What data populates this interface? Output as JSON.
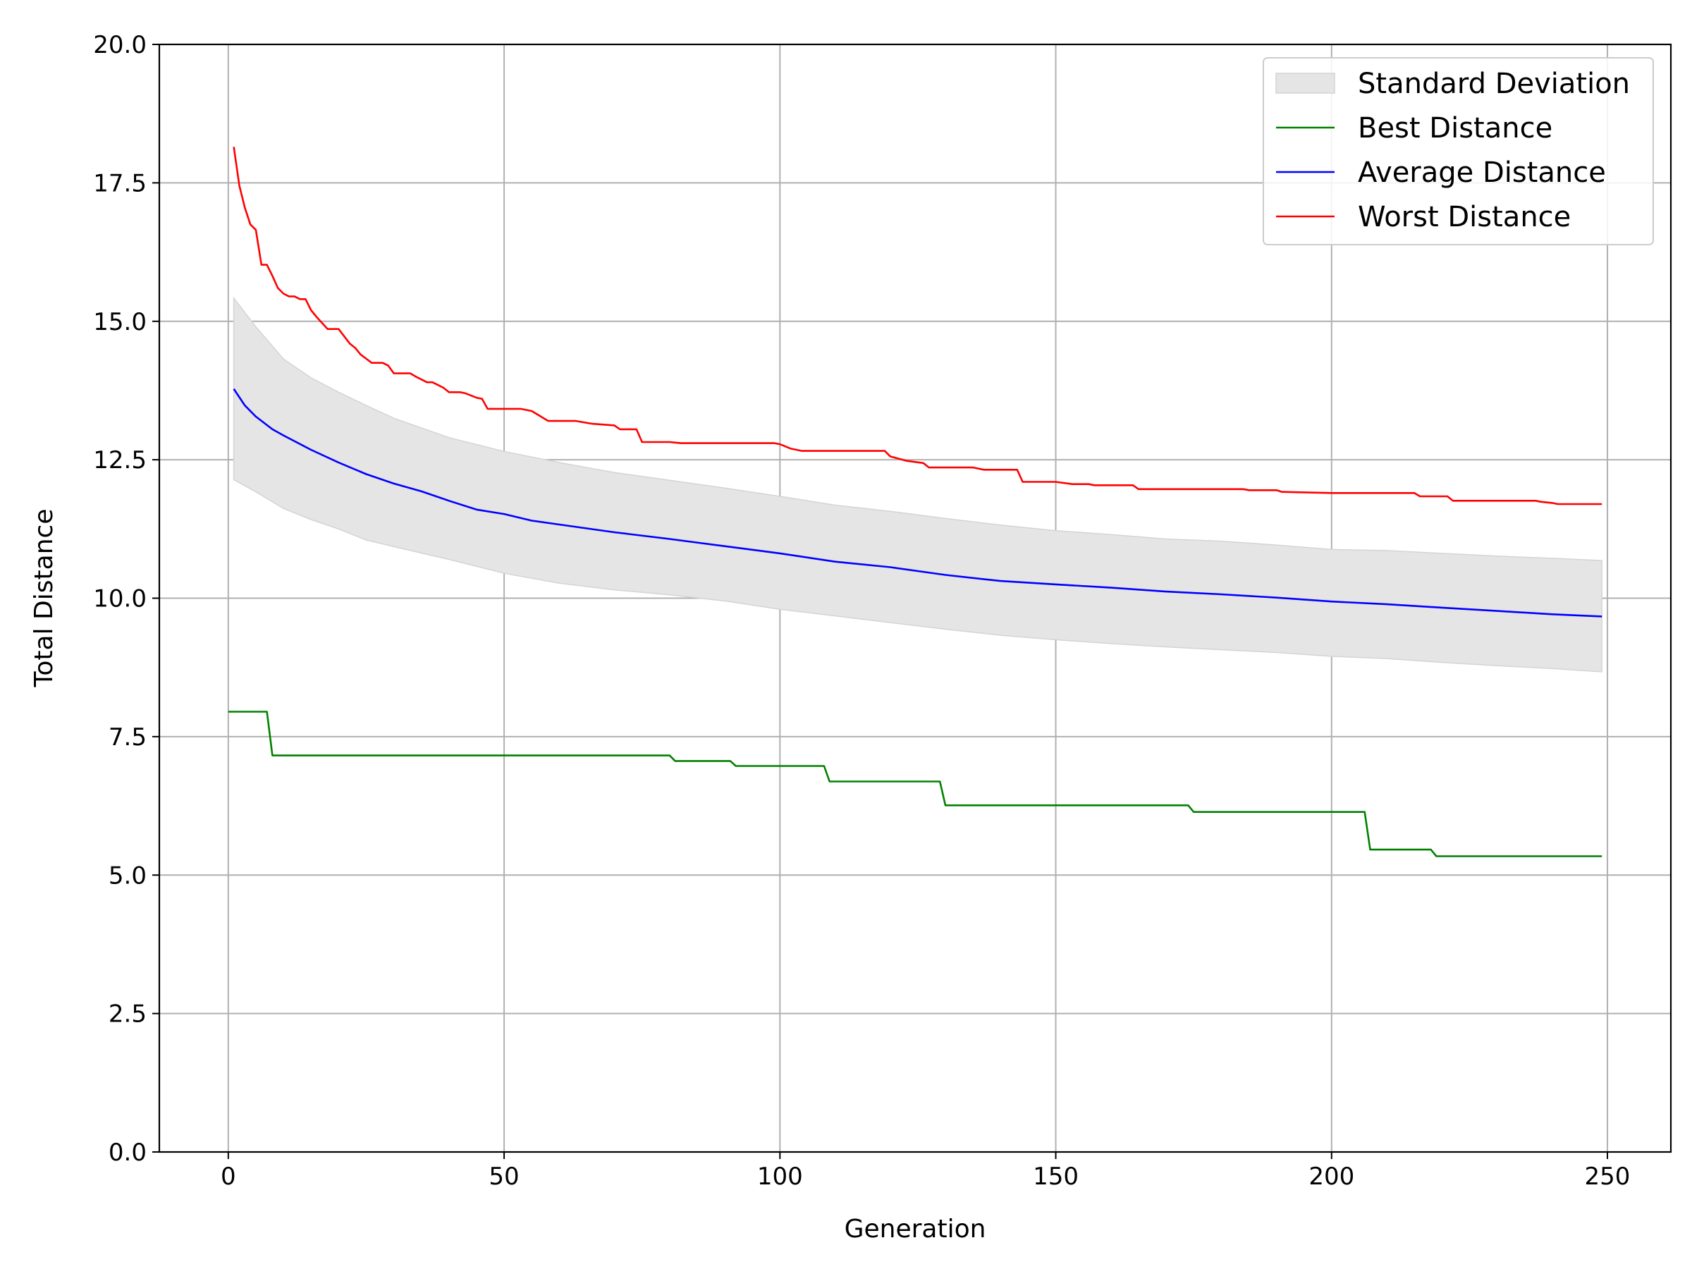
{
  "chart_data": {
    "type": "line",
    "title": "",
    "xlabel": "Generation",
    "ylabel": "Total Distance",
    "xlim": [
      -12.5,
      261.5
    ],
    "ylim": [
      0,
      20
    ],
    "xticks": [
      "0",
      "50",
      "100",
      "150",
      "200",
      "250"
    ],
    "yticks": [
      "0.0",
      "2.5",
      "5.0",
      "7.5",
      "10.0",
      "12.5",
      "15.0",
      "17.5",
      "20.0"
    ],
    "grid": true,
    "legend_position": "top-right",
    "colors": {
      "best": "#008000",
      "average": "#0000ff",
      "worst": "#ff0000",
      "band": "#e5e5e5",
      "band_edge": "#d4d4d4"
    },
    "band": {
      "name": "Standard Deviation",
      "x": [
        1,
        5,
        10,
        15,
        20,
        25,
        30,
        40,
        50,
        60,
        70,
        80,
        90,
        100,
        110,
        120,
        130,
        140,
        150,
        160,
        170,
        180,
        190,
        200,
        210,
        220,
        230,
        240,
        249
      ],
      "upper": [
        15.42,
        14.9,
        14.32,
        13.98,
        13.72,
        13.48,
        13.25,
        12.9,
        12.65,
        12.45,
        12.27,
        12.13,
        11.99,
        11.84,
        11.68,
        11.57,
        11.44,
        11.32,
        11.22,
        11.15,
        11.07,
        11.03,
        10.96,
        10.88,
        10.86,
        10.81,
        10.76,
        10.72,
        10.68
      ],
      "lower": [
        12.14,
        11.92,
        11.62,
        11.42,
        11.25,
        11.05,
        10.93,
        10.7,
        10.45,
        10.27,
        10.15,
        10.06,
        9.95,
        9.8,
        9.68,
        9.56,
        9.44,
        9.33,
        9.25,
        9.18,
        9.12,
        9.07,
        9.02,
        8.95,
        8.91,
        8.84,
        8.78,
        8.73,
        8.67
      ]
    },
    "series": [
      {
        "name": "Best Distance",
        "x": [
          0,
          7,
          8,
          80,
          81,
          91,
          92,
          108,
          109,
          129,
          130,
          174,
          175,
          206,
          207,
          218,
          219,
          249
        ],
        "y": [
          7.95,
          7.95,
          7.16,
          7.16,
          7.06,
          7.06,
          6.97,
          6.97,
          6.69,
          6.69,
          6.26,
          6.26,
          6.14,
          6.14,
          5.46,
          5.46,
          5.34,
          5.34
        ]
      },
      {
        "name": "Average Distance",
        "x": [
          1,
          3,
          5,
          8,
          10,
          15,
          20,
          25,
          30,
          35,
          40,
          45,
          50,
          55,
          60,
          70,
          80,
          90,
          100,
          110,
          120,
          130,
          140,
          150,
          160,
          170,
          180,
          190,
          200,
          210,
          220,
          230,
          240,
          249
        ],
        "y": [
          13.78,
          13.48,
          13.28,
          13.05,
          12.94,
          12.68,
          12.45,
          12.24,
          12.07,
          11.93,
          11.76,
          11.6,
          11.52,
          11.4,
          11.33,
          11.19,
          11.07,
          10.94,
          10.81,
          10.66,
          10.56,
          10.42,
          10.31,
          10.25,
          10.19,
          10.12,
          10.07,
          10.01,
          9.94,
          9.89,
          9.83,
          9.77,
          9.71,
          9.67
        ]
      },
      {
        "name": "Worst Distance",
        "x": [
          1,
          2,
          3,
          4,
          5,
          6,
          7,
          8,
          9,
          10,
          11,
          12,
          13,
          14,
          15,
          16,
          18,
          19,
          20,
          22,
          23,
          24,
          26,
          28,
          29,
          30,
          32,
          33,
          34,
          35,
          36,
          37,
          38,
          39,
          40,
          42,
          43,
          45,
          46,
          47,
          50,
          53,
          55,
          58,
          63,
          66,
          70,
          71,
          74,
          75,
          79,
          80,
          82,
          99,
          100,
          102,
          104,
          119,
          120,
          123,
          126,
          127,
          130,
          135,
          137,
          143,
          144,
          150,
          153,
          156,
          157,
          158,
          164,
          165,
          170,
          184,
          185,
          190,
          191,
          200,
          215,
          216,
          221,
          222,
          237,
          238,
          240,
          241,
          249
        ],
        "y": [
          18.15,
          17.45,
          17.05,
          16.75,
          16.65,
          16.02,
          16.02,
          15.82,
          15.6,
          15.5,
          15.45,
          15.45,
          15.4,
          15.4,
          15.2,
          15.08,
          14.86,
          14.86,
          14.86,
          14.6,
          14.52,
          14.4,
          14.25,
          14.25,
          14.2,
          14.06,
          14.06,
          14.06,
          14.0,
          13.95,
          13.9,
          13.9,
          13.85,
          13.8,
          13.72,
          13.72,
          13.7,
          13.62,
          13.6,
          13.42,
          13.42,
          13.42,
          13.38,
          13.2,
          13.2,
          13.15,
          13.12,
          13.05,
          13.05,
          12.82,
          12.82,
          12.82,
          12.8,
          12.8,
          12.78,
          12.7,
          12.66,
          12.66,
          12.56,
          12.48,
          12.44,
          12.36,
          12.36,
          12.36,
          12.32,
          12.32,
          12.1,
          12.1,
          12.06,
          12.06,
          12.04,
          12.04,
          12.04,
          11.97,
          11.97,
          11.97,
          11.95,
          11.95,
          11.92,
          11.9,
          11.9,
          11.84,
          11.84,
          11.76,
          11.76,
          11.74,
          11.72,
          11.7,
          11.7
        ]
      }
    ]
  }
}
